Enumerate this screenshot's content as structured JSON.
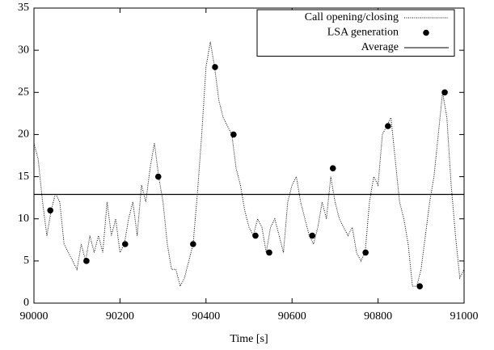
{
  "chart_data": {
    "type": "line",
    "xlabel": "Time [s]",
    "xlim": [
      90000,
      91000
    ],
    "xticks": [
      90000,
      90200,
      90400,
      90600,
      90800,
      91000
    ],
    "ylim": [
      0,
      35
    ],
    "yticks": [
      0,
      5,
      10,
      15,
      20,
      25,
      30,
      35
    ],
    "grid": false,
    "legend": "top right",
    "series": [
      {
        "name": "Call opening/closing",
        "type": "line",
        "style": "dotted",
        "color": "#000000",
        "x": [
          90000,
          90010,
          90020,
          90030,
          90040,
          90050,
          90060,
          90070,
          90080,
          90090,
          90100,
          90110,
          90120,
          90130,
          90140,
          90150,
          90160,
          90170,
          90180,
          90190,
          90200,
          90210,
          90220,
          90230,
          90240,
          90250,
          90260,
          90270,
          90280,
          90290,
          90300,
          90310,
          90320,
          90330,
          90340,
          90350,
          90360,
          90370,
          90380,
          90390,
          90400,
          90410,
          90420,
          90430,
          90440,
          90450,
          90460,
          90470,
          90480,
          90490,
          90500,
          90510,
          90520,
          90530,
          90540,
          90550,
          90560,
          90570,
          90580,
          90590,
          90600,
          90610,
          90620,
          90630,
          90640,
          90650,
          90660,
          90670,
          90680,
          90690,
          90700,
          90710,
          90720,
          90730,
          90740,
          90750,
          90760,
          90770,
          90780,
          90790,
          90800,
          90810,
          90820,
          90830,
          90840,
          90850,
          90860,
          90870,
          90880,
          90890,
          90900,
          90910,
          90920,
          90930,
          90940,
          90950,
          90960,
          90970,
          90980,
          90990,
          91000
        ],
        "values": [
          19,
          17,
          12,
          8,
          11,
          13,
          12,
          7,
          6,
          5,
          4,
          7,
          5,
          8,
          6,
          8,
          6,
          12,
          8,
          10,
          6,
          7,
          10,
          12,
          8,
          14,
          12,
          16,
          19,
          15,
          12,
          7,
          4,
          4,
          2,
          3,
          5,
          7,
          13,
          20,
          28,
          31,
          28,
          24,
          22,
          21,
          20,
          16,
          14,
          11,
          9,
          8,
          10,
          9,
          6,
          9,
          10,
          8,
          6,
          12,
          14,
          15,
          12,
          10,
          8,
          7,
          9,
          12,
          10,
          15,
          12,
          10,
          9,
          8,
          9,
          6,
          5,
          6,
          12,
          15,
          14,
          20,
          21,
          22,
          17,
          12,
          10,
          7,
          2,
          2,
          4,
          8,
          12,
          15,
          20,
          25,
          22,
          14,
          8,
          3,
          4
        ]
      },
      {
        "name": "LSA generation",
        "type": "scatter",
        "color": "#000000",
        "x": [
          90038,
          90122,
          90212,
          90289,
          90370,
          90421,
          90464,
          90515,
          90547,
          90647,
          90695,
          90771,
          90823,
          90897,
          90955
        ],
        "values": [
          11,
          5,
          7,
          15,
          7,
          28,
          20,
          8,
          6,
          8,
          16,
          6,
          21,
          2,
          25
        ]
      },
      {
        "name": "Average",
        "type": "line",
        "style": "solid",
        "color": "#000000",
        "x": [
          90000,
          91000
        ],
        "values": [
          12.9,
          12.9
        ]
      }
    ]
  }
}
